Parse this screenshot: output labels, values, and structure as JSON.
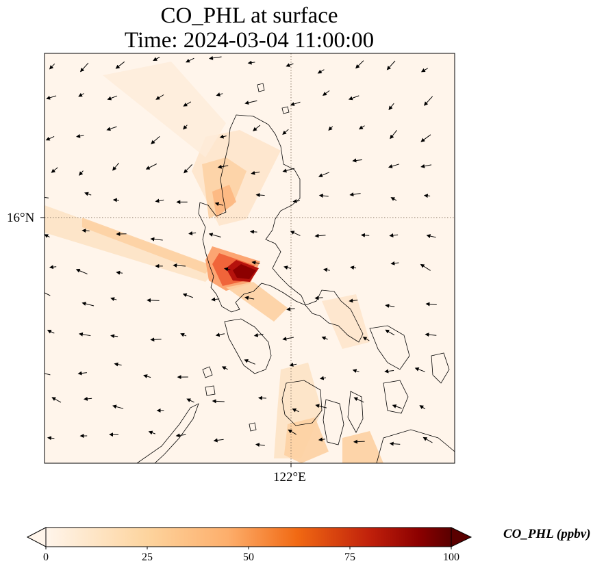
{
  "title": {
    "line1": "CO_PHL at surface",
    "line2": "Time: 2024-03-04 11:00:00"
  },
  "axes": {
    "lat_tick_label": "16°N",
    "lon_tick_label": "122°E"
  },
  "colorbar": {
    "label": "CO_PHL (ppbv)",
    "ticks": [
      "0",
      "25",
      "50",
      "75",
      "100"
    ],
    "min": 0,
    "max": 100,
    "extend": "both",
    "colormap": [
      "#fff5eb",
      "#fdd49e",
      "#fdae6b",
      "#f16913",
      "#d94801",
      "#8c0000",
      "#4a0000"
    ]
  },
  "colors": {
    "land_outline": "#000000",
    "gridline": "#8a7766",
    "background": "#fff5eb"
  },
  "icons": {
    "wind_vector": "arrow-icon"
  }
}
